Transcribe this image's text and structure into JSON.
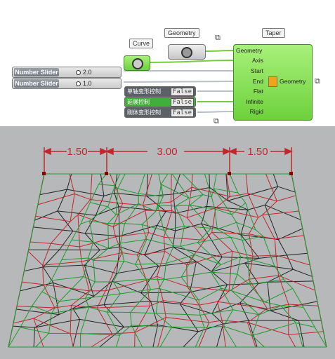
{
  "grasshopper": {
    "curve_label": "Curve",
    "geometry_label": "Geometry",
    "taper": {
      "title": "Taper",
      "inputs": [
        "Geometry",
        "Axis",
        "Start",
        "End",
        "Flat",
        "Infinite",
        "Rigid"
      ],
      "output": "Geometry"
    },
    "sliders": [
      {
        "name": "Number Slider",
        "value": "2.0"
      },
      {
        "name": "Number Slider",
        "value": "1.0"
      }
    ],
    "toggles": [
      {
        "name": "单轴变形控制",
        "value": "False",
        "active": false
      },
      {
        "name": "延展控制",
        "value": "False",
        "active": true
      },
      {
        "name": "刚体变形控制",
        "value": "False",
        "active": false
      }
    ]
  },
  "viewport": {
    "dimensions": [
      "1.50",
      "3.00",
      "1.50"
    ],
    "colors": {
      "dimension": "#c0272d",
      "mesh_green": "#1f9a2e",
      "mesh_red": "#c0272d",
      "mesh_black": "#222222",
      "background": "#b6b8ba"
    }
  }
}
